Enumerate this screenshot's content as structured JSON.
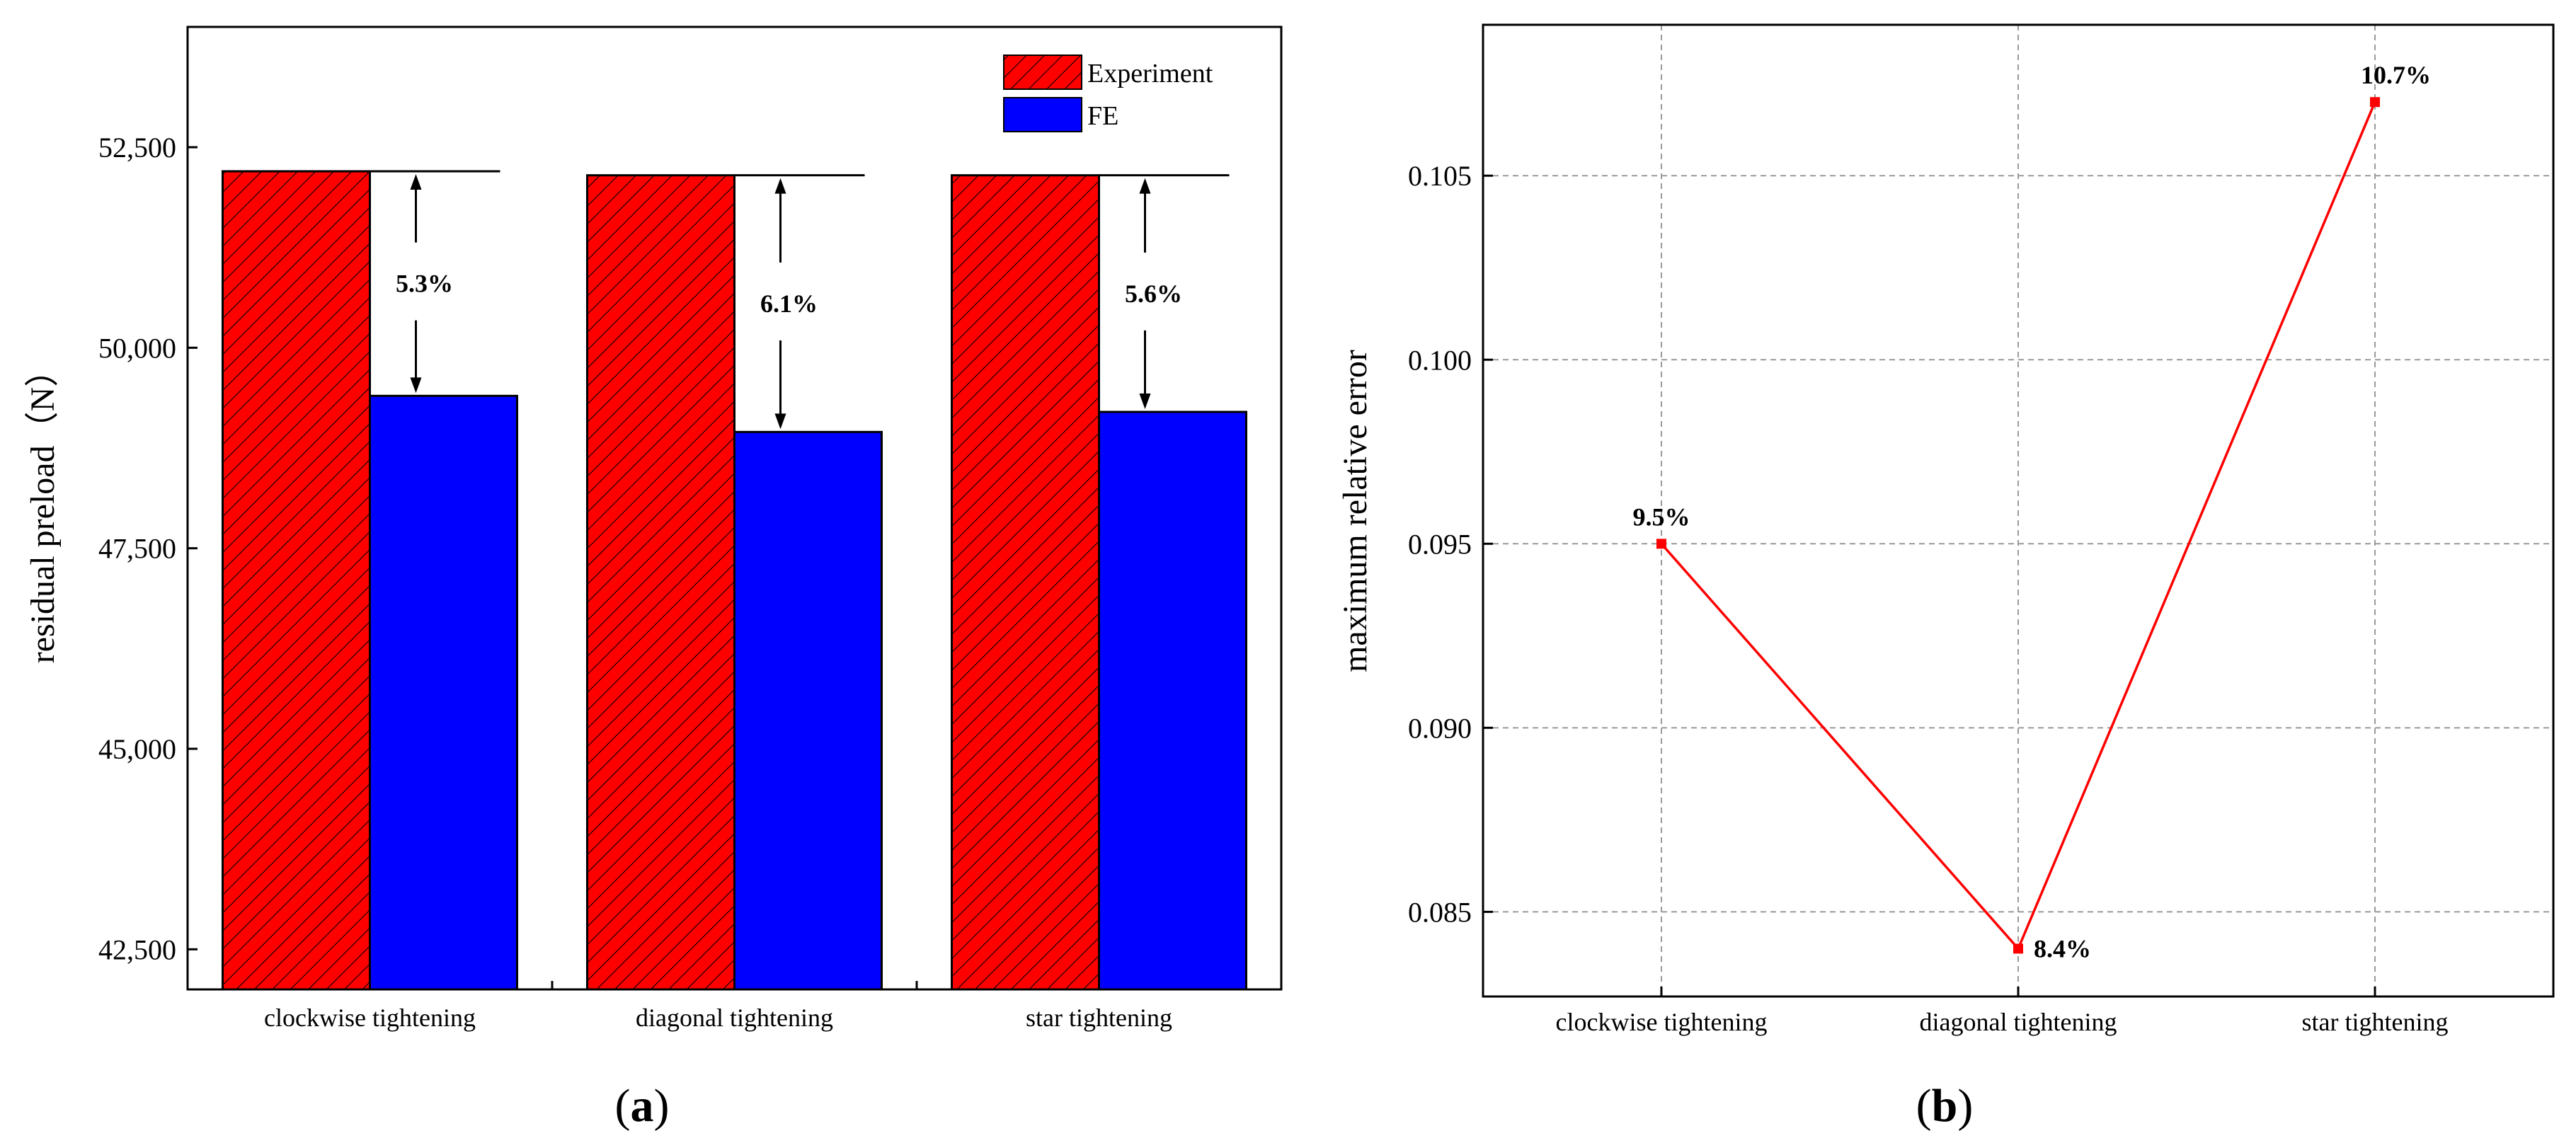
{
  "chart_data": [
    {
      "type": "bar",
      "panel_label": {
        "open": "(",
        "letter": "a",
        "close": ")"
      },
      "title": "",
      "xlabel": "",
      "ylabel": "residual preload（N）",
      "ylim": [
        42000,
        54000
      ],
      "yticks": [
        42500,
        45000,
        47500,
        50000,
        52500
      ],
      "ytick_labels": [
        "42,500",
        "45,000",
        "47,500",
        "50,000",
        "52,500"
      ],
      "categories": [
        "clockwise tightening",
        "diagonal tightening",
        "star tightening"
      ],
      "series": [
        {
          "name": "Experiment",
          "values": [
            52200,
            52150,
            52150
          ],
          "color": "#ff0000",
          "pattern": "hatched"
        },
        {
          "name": "FE",
          "values": [
            49400,
            48950,
            49200
          ],
          "color": "#0000ff",
          "pattern": "solid"
        }
      ],
      "annotations": [
        "5.3%",
        "6.1%",
        "5.6%"
      ],
      "legend": {
        "position": "top-right",
        "entries": [
          "Experiment",
          "FE"
        ]
      },
      "grid": false
    },
    {
      "type": "line",
      "panel_label": {
        "open": "(",
        "letter": "b",
        "close": ")"
      },
      "title": "",
      "xlabel": "",
      "ylabel": "maximum relative error",
      "ylim": [
        0.0827,
        0.1091
      ],
      "yticks": [
        0.085,
        0.09,
        0.095,
        0.1,
        0.105
      ],
      "ytick_labels": [
        "0.085",
        "0.090",
        "0.095",
        "0.100",
        "0.105"
      ],
      "categories": [
        "clockwise tightening",
        "diagonal tightening",
        "star tightening"
      ],
      "values": [
        0.095,
        0.084,
        0.107
      ],
      "point_labels": [
        "9.5%",
        "8.4%",
        "10.7%"
      ],
      "color": "#ff0000",
      "grid": true
    }
  ]
}
